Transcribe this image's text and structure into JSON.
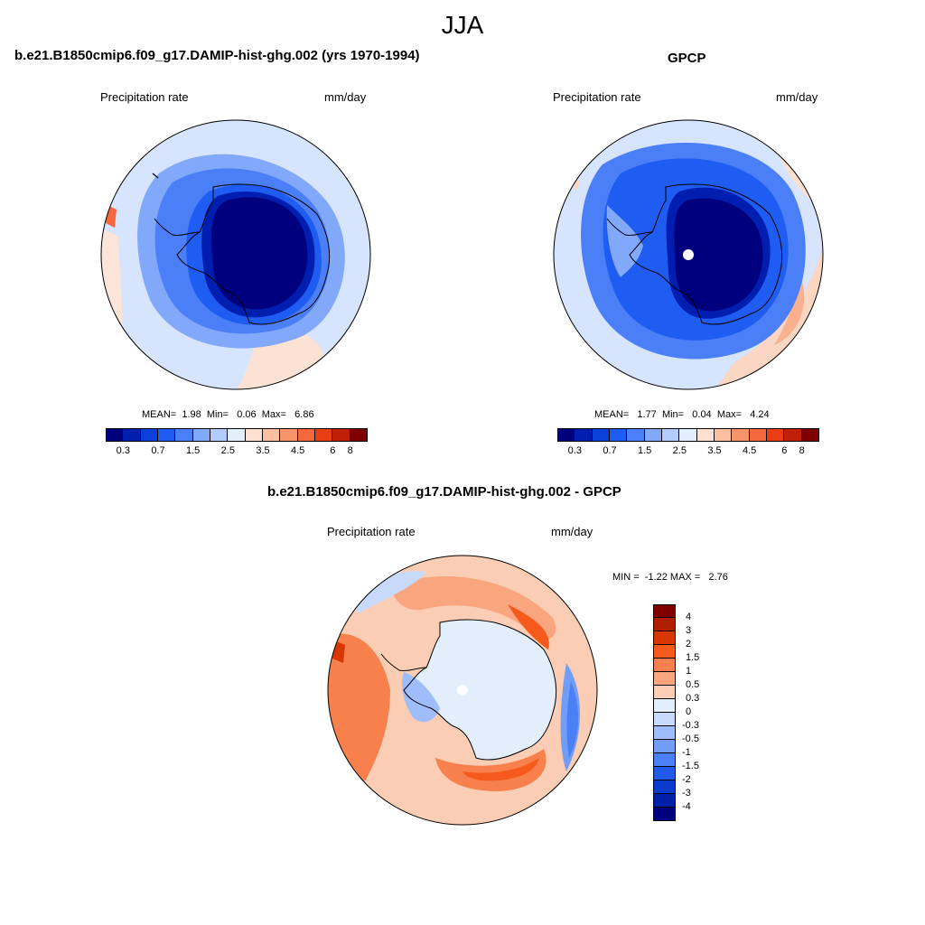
{
  "season": "JJA",
  "panel1": {
    "title": "b.e21.B1850cmip6.f09_g17.DAMIP-hist-ghg.002 (yrs 1970-1994)",
    "left_label": "Precipitation rate",
    "right_label": "mm/day",
    "mean_label": "MEAN=",
    "mean_value": "1.98",
    "min_label": "Min=",
    "min_value": "0.06",
    "max_label": "Max=",
    "max_value": "6.86"
  },
  "panel2": {
    "title": "GPCP",
    "left_label": "Precipitation rate",
    "right_label": "mm/day",
    "mean_label": "MEAN=",
    "mean_value": "1.77",
    "min_label": "Min=",
    "min_value": "0.04",
    "max_label": "Max=",
    "max_value": "4.24"
  },
  "panel3": {
    "title": "b.e21.B1850cmip6.f09_g17.DAMIP-hist-ghg.002 - GPCP",
    "left_label": "Precipitation rate",
    "right_label": "mm/day",
    "min_label": "MIN =",
    "min_value": "-1.22",
    "max_label": "MAX =",
    "max_value": "2.76"
  },
  "abs_colorbar": {
    "colors": [
      "#00007f",
      "#001fb0",
      "#0a3fd8",
      "#1f5cf2",
      "#4a7ff7",
      "#82a8fa",
      "#b4ccfc",
      "#e3eefd",
      "#fde0cf",
      "#fbbe9e",
      "#f8946a",
      "#f5683e",
      "#ea3d14",
      "#c01f08",
      "#7f0000"
    ],
    "labels": [
      "0.3",
      "0.7",
      "1.5",
      "2.5",
      "3.5",
      "4.5",
      "6",
      "8"
    ],
    "label_boundaries": [
      1,
      3,
      5,
      7,
      9,
      11,
      13,
      14
    ]
  },
  "diff_colorbar": {
    "colors": [
      "#7f0000",
      "#b01f00",
      "#d83800",
      "#f55a1c",
      "#f7804c",
      "#f9a67e",
      "#fbcdb4",
      "#e3eefd",
      "#c7dafc",
      "#9fbdfa",
      "#729df7",
      "#4a7ff5",
      "#1f5ae8",
      "#0a3acd",
      "#001fa8",
      "#00007f"
    ],
    "labels": [
      "4",
      "3",
      "2",
      "1.5",
      "1",
      "0.5",
      "0.3",
      "0",
      "-0.3",
      "-0.5",
      "-1",
      "-1.5",
      "-2",
      "-3",
      "-4"
    ]
  }
}
